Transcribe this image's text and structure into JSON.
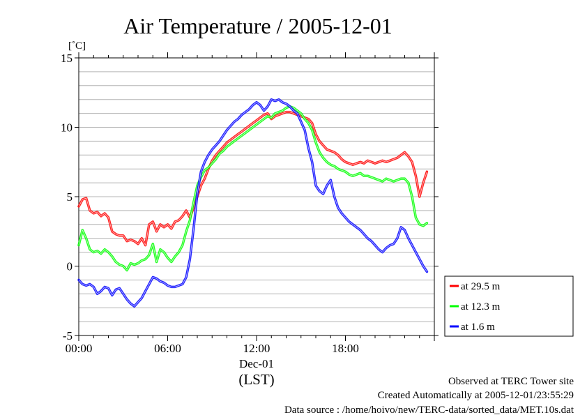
{
  "chart_data": {
    "type": "line",
    "title": "Air Temperature / 2005-12-01",
    "ylabel": "[˚C]",
    "ylim": [
      -5,
      15
    ],
    "yticks": [
      -5,
      0,
      5,
      10,
      15
    ],
    "xlim": [
      0,
      24
    ],
    "xticks": [
      {
        "x": 0,
        "label": "00:00"
      },
      {
        "x": 6,
        "label": "06:00"
      },
      {
        "x": 12,
        "label": "12:00"
      },
      {
        "x": 18,
        "label": "18:00"
      }
    ],
    "xdate_label": "Dec-01",
    "xunit_label": "(LST)",
    "grid": "horizontal",
    "legend_position": "right-bottom",
    "series": [
      {
        "name": "at 29.5 m",
        "color": "#ff0000",
        "x": [
          0.0,
          0.25,
          0.5,
          0.75,
          1.0,
          1.25,
          1.5,
          1.75,
          2.0,
          2.25,
          2.5,
          2.75,
          3.0,
          3.25,
          3.5,
          3.75,
          4.0,
          4.25,
          4.5,
          4.75,
          5.0,
          5.25,
          5.5,
          5.75,
          6.0,
          6.25,
          6.5,
          6.75,
          7.0,
          7.25,
          7.5,
          7.75,
          8.0,
          8.25,
          8.5,
          8.75,
          9.0,
          9.25,
          9.5,
          9.75,
          10.0,
          10.25,
          10.5,
          10.75,
          11.0,
          11.25,
          11.5,
          11.75,
          12.0,
          12.25,
          12.5,
          12.75,
          13.0,
          13.25,
          13.5,
          13.75,
          14.0,
          14.25,
          14.5,
          14.75,
          15.0,
          15.25,
          15.5,
          15.75,
          16.0,
          16.25,
          16.5,
          16.75,
          17.0,
          17.25,
          17.5,
          17.75,
          18.0,
          18.25,
          18.5,
          18.75,
          19.0,
          19.25,
          19.5,
          19.75,
          20.0,
          20.25,
          20.5,
          20.75,
          21.0,
          21.25,
          21.5,
          21.75,
          22.0,
          22.25,
          22.5,
          22.75,
          23.0,
          23.25,
          23.5
        ],
        "values": [
          4.3,
          4.8,
          4.9,
          4.0,
          3.8,
          3.9,
          3.6,
          3.8,
          3.5,
          2.5,
          2.3,
          2.2,
          2.2,
          1.8,
          1.9,
          1.8,
          1.6,
          2.0,
          1.5,
          3.0,
          3.2,
          2.5,
          3.0,
          2.8,
          3.0,
          2.7,
          3.2,
          3.3,
          3.6,
          4.0,
          3.5,
          4.2,
          5.0,
          5.8,
          6.3,
          7.0,
          7.6,
          8.0,
          8.3,
          8.6,
          8.9,
          9.1,
          9.3,
          9.5,
          9.7,
          9.9,
          10.1,
          10.3,
          10.5,
          10.7,
          10.9,
          11.0,
          10.6,
          10.8,
          10.9,
          11.0,
          11.1,
          11.1,
          11.0,
          10.9,
          10.8,
          10.7,
          10.6,
          10.3,
          9.5,
          9.0,
          8.7,
          8.4,
          8.3,
          8.2,
          8.0,
          7.7,
          7.5,
          7.4,
          7.3,
          7.4,
          7.5,
          7.4,
          7.6,
          7.5,
          7.4,
          7.5,
          7.6,
          7.5,
          7.6,
          7.7,
          7.8,
          8.0,
          8.2,
          7.9,
          7.5,
          6.5,
          5.0,
          6.0,
          6.8
        ]
      },
      {
        "name": "at 12.3 m",
        "color": "#00ff00",
        "x": [
          0.0,
          0.25,
          0.5,
          0.75,
          1.0,
          1.25,
          1.5,
          1.75,
          2.0,
          2.25,
          2.5,
          2.75,
          3.0,
          3.25,
          3.5,
          3.75,
          4.0,
          4.25,
          4.5,
          4.75,
          5.0,
          5.25,
          5.5,
          5.75,
          6.0,
          6.25,
          6.5,
          6.75,
          7.0,
          7.25,
          7.5,
          7.75,
          8.0,
          8.25,
          8.5,
          8.75,
          9.0,
          9.25,
          9.5,
          9.75,
          10.0,
          10.25,
          10.5,
          10.75,
          11.0,
          11.25,
          11.5,
          11.75,
          12.0,
          12.25,
          12.5,
          12.75,
          13.0,
          13.25,
          13.5,
          13.75,
          14.0,
          14.25,
          14.5,
          14.75,
          15.0,
          15.25,
          15.5,
          15.75,
          16.0,
          16.25,
          16.5,
          16.75,
          17.0,
          17.25,
          17.5,
          17.75,
          18.0,
          18.25,
          18.5,
          18.75,
          19.0,
          19.25,
          19.5,
          19.75,
          20.0,
          20.25,
          20.5,
          20.75,
          21.0,
          21.25,
          21.5,
          21.75,
          22.0,
          22.25,
          22.5,
          22.75,
          23.0,
          23.25,
          23.5
        ],
        "values": [
          1.5,
          2.6,
          2.0,
          1.2,
          1.0,
          1.1,
          0.9,
          1.2,
          1.0,
          0.7,
          0.3,
          0.1,
          0.0,
          -0.3,
          0.2,
          0.1,
          0.2,
          0.4,
          0.5,
          0.8,
          1.6,
          0.3,
          1.2,
          1.0,
          0.6,
          0.3,
          0.7,
          1.0,
          1.5,
          2.5,
          3.3,
          4.6,
          5.8,
          6.4,
          6.9,
          7.1,
          7.4,
          7.7,
          8.1,
          8.3,
          8.6,
          8.8,
          9.0,
          9.2,
          9.4,
          9.6,
          9.8,
          10.0,
          10.2,
          10.4,
          10.6,
          10.8,
          10.7,
          11.0,
          11.1,
          11.2,
          11.4,
          11.5,
          11.4,
          11.2,
          11.0,
          10.6,
          10.3,
          9.8,
          8.9,
          8.2,
          7.8,
          7.5,
          7.3,
          7.2,
          7.0,
          6.9,
          6.8,
          6.6,
          6.5,
          6.6,
          6.7,
          6.5,
          6.5,
          6.4,
          6.3,
          6.2,
          6.1,
          6.3,
          6.2,
          6.1,
          6.2,
          6.3,
          6.3,
          6.0,
          5.0,
          3.5,
          3.0,
          2.9,
          3.1
        ]
      },
      {
        "name": "at 1.6 m",
        "color": "#0000ff",
        "x": [
          0.0,
          0.25,
          0.5,
          0.75,
          1.0,
          1.25,
          1.5,
          1.75,
          2.0,
          2.25,
          2.5,
          2.75,
          3.0,
          3.25,
          3.5,
          3.75,
          4.0,
          4.25,
          4.5,
          4.75,
          5.0,
          5.25,
          5.5,
          5.75,
          6.0,
          6.25,
          6.5,
          6.75,
          7.0,
          7.25,
          7.5,
          7.75,
          8.0,
          8.25,
          8.5,
          8.75,
          9.0,
          9.25,
          9.5,
          9.75,
          10.0,
          10.25,
          10.5,
          10.75,
          11.0,
          11.25,
          11.5,
          11.75,
          12.0,
          12.25,
          12.5,
          12.75,
          13.0,
          13.25,
          13.5,
          13.75,
          14.0,
          14.25,
          14.5,
          14.75,
          15.0,
          15.25,
          15.5,
          15.75,
          16.0,
          16.25,
          16.5,
          16.75,
          17.0,
          17.25,
          17.5,
          17.75,
          18.0,
          18.25,
          18.5,
          18.75,
          19.0,
          19.25,
          19.5,
          19.75,
          20.0,
          20.25,
          20.5,
          20.75,
          21.0,
          21.25,
          21.5,
          21.75,
          22.0,
          22.25,
          22.5,
          22.75,
          23.0,
          23.25,
          23.5
        ],
        "values": [
          -1.0,
          -1.3,
          -1.4,
          -1.3,
          -1.5,
          -2.0,
          -1.8,
          -1.5,
          -1.6,
          -2.1,
          -1.7,
          -1.6,
          -2.0,
          -2.4,
          -2.7,
          -2.9,
          -2.6,
          -2.3,
          -1.8,
          -1.3,
          -0.8,
          -0.9,
          -1.1,
          -1.2,
          -1.4,
          -1.5,
          -1.5,
          -1.4,
          -1.3,
          -0.8,
          0.5,
          2.7,
          5.2,
          6.8,
          7.5,
          8.0,
          8.4,
          8.7,
          9.0,
          9.4,
          9.8,
          10.1,
          10.4,
          10.6,
          10.9,
          11.1,
          11.3,
          11.6,
          11.8,
          11.6,
          11.2,
          11.5,
          12.0,
          11.9,
          12.0,
          11.8,
          11.7,
          11.5,
          11.2,
          11.0,
          10.4,
          9.8,
          8.5,
          7.5,
          5.8,
          5.4,
          5.2,
          5.8,
          6.2,
          5.0,
          4.2,
          3.8,
          3.5,
          3.2,
          3.0,
          2.8,
          2.6,
          2.3,
          2.0,
          1.8,
          1.5,
          1.2,
          1.0,
          1.3,
          1.5,
          1.6,
          2.0,
          2.8,
          2.6,
          2.0,
          1.5,
          1.0,
          0.5,
          0.0,
          -0.4
        ]
      }
    ]
  },
  "footer": {
    "line1": "Observed at TERC Tower site",
    "line2": "Created Automatically at 2005-12-01/23:55:29",
    "line3": "Data source : /home/hoivo/new/TERC-data/sorted_data/MET.10s.dat"
  }
}
